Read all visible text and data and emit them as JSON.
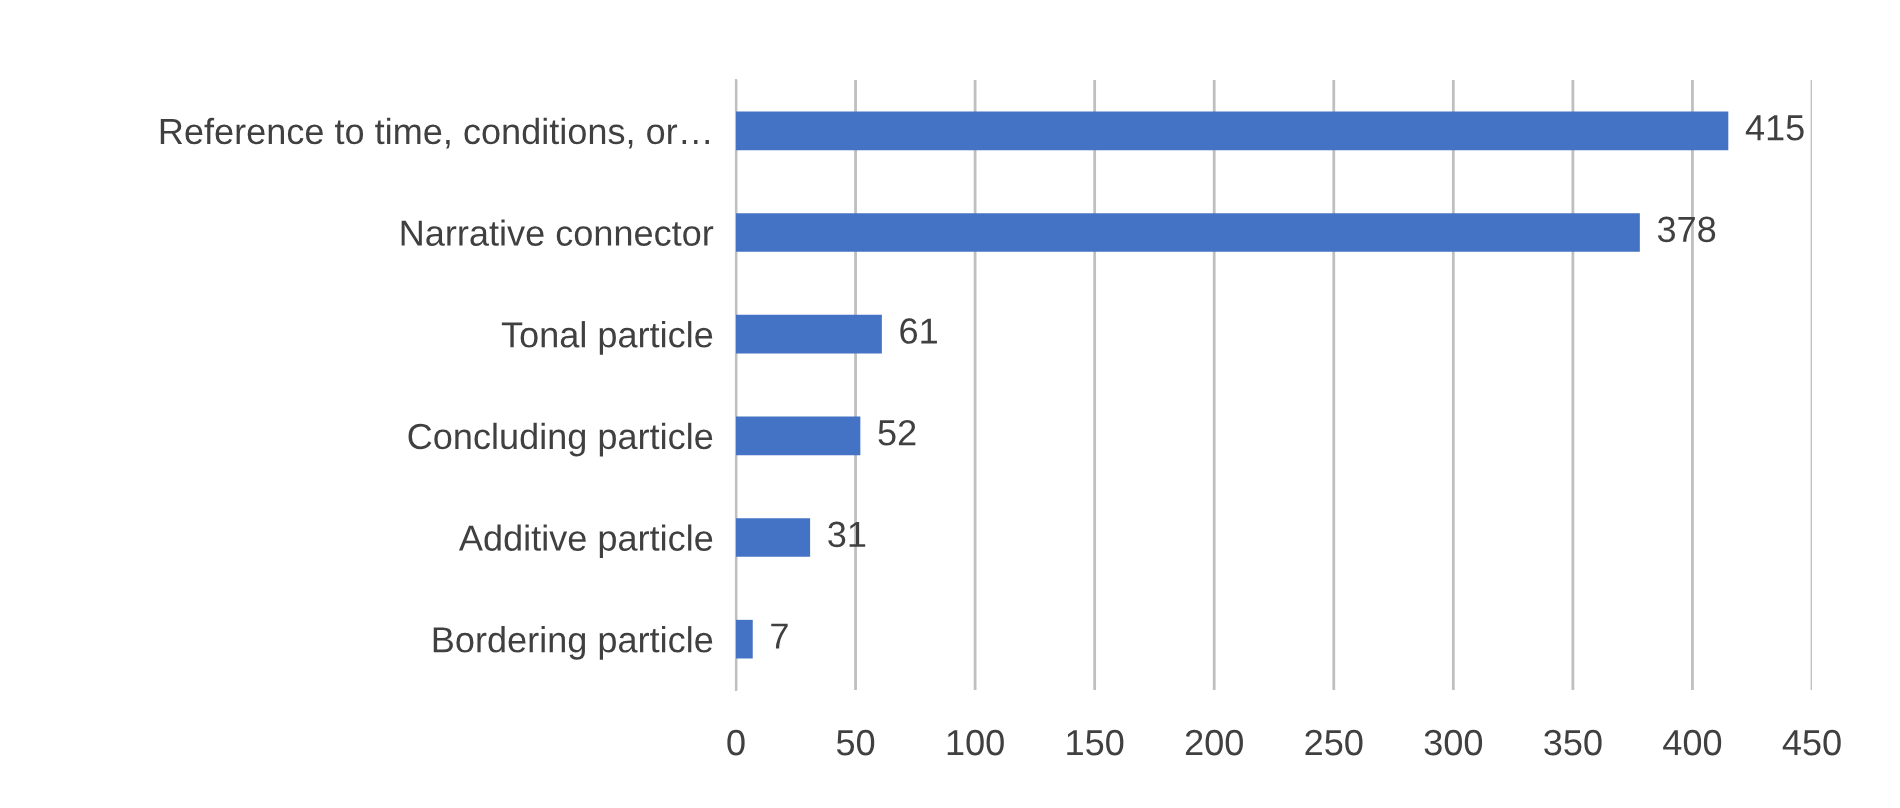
{
  "chart_data": {
    "type": "bar",
    "orientation": "horizontal",
    "categories": [
      "Reference to time, conditions, or…",
      "Narrative connector",
      "Tonal particle",
      "Concluding particle",
      "Additive particle",
      "Bordering particle"
    ],
    "values": [
      415,
      378,
      61,
      52,
      31,
      7
    ],
    "color": "#4472c4",
    "xlim": [
      0,
      450
    ],
    "xticks": [
      0,
      50,
      100,
      150,
      200,
      250,
      300,
      350,
      400,
      450
    ],
    "grid": "x",
    "data_labels": true,
    "legend": false
  }
}
